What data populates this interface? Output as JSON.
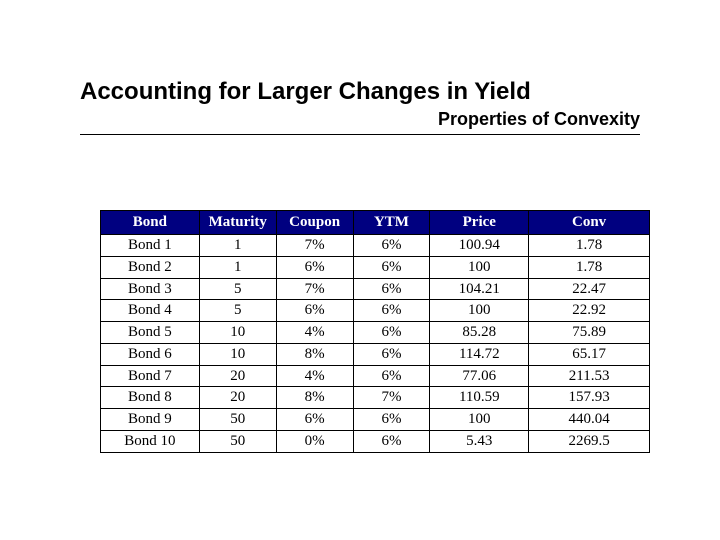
{
  "title": "Accounting for Larger Changes in Yield",
  "subtitle": "Properties of Convexity",
  "table": {
    "type": "table",
    "header_bg": "#000080",
    "header_fg": "#ffffff",
    "border_color": "#000000",
    "font_family": "Times New Roman",
    "font_size_pt": 11,
    "columns": [
      "Bond",
      "Maturity",
      "Coupon",
      "YTM",
      "Price",
      "Conv"
    ],
    "rows": [
      [
        "Bond 1",
        "1",
        "7%",
        "6%",
        "100.94",
        "1.78"
      ],
      [
        "Bond 2",
        "1",
        "6%",
        "6%",
        "100",
        "1.78"
      ],
      [
        "Bond 3",
        "5",
        "7%",
        "6%",
        "104.21",
        "22.47"
      ],
      [
        "Bond 4",
        "5",
        "6%",
        "6%",
        "100",
        "22.92"
      ],
      [
        "Bond 5",
        "10",
        "4%",
        "6%",
        "85.28",
        "75.89"
      ],
      [
        "Bond 6",
        "10",
        "8%",
        "6%",
        "114.72",
        "65.17"
      ],
      [
        "Bond 7",
        "20",
        "4%",
        "6%",
        "77.06",
        "211.53"
      ],
      [
        "Bond 8",
        "20",
        "8%",
        "7%",
        "110.59",
        "157.93"
      ],
      [
        "Bond 9",
        "50",
        "6%",
        "6%",
        "100",
        "440.04"
      ],
      [
        "Bond 10",
        "50",
        "0%",
        "6%",
        "5.43",
        "2269.5"
      ]
    ]
  },
  "colors": {
    "background": "#ffffff",
    "text": "#000000",
    "rule": "#000000"
  }
}
